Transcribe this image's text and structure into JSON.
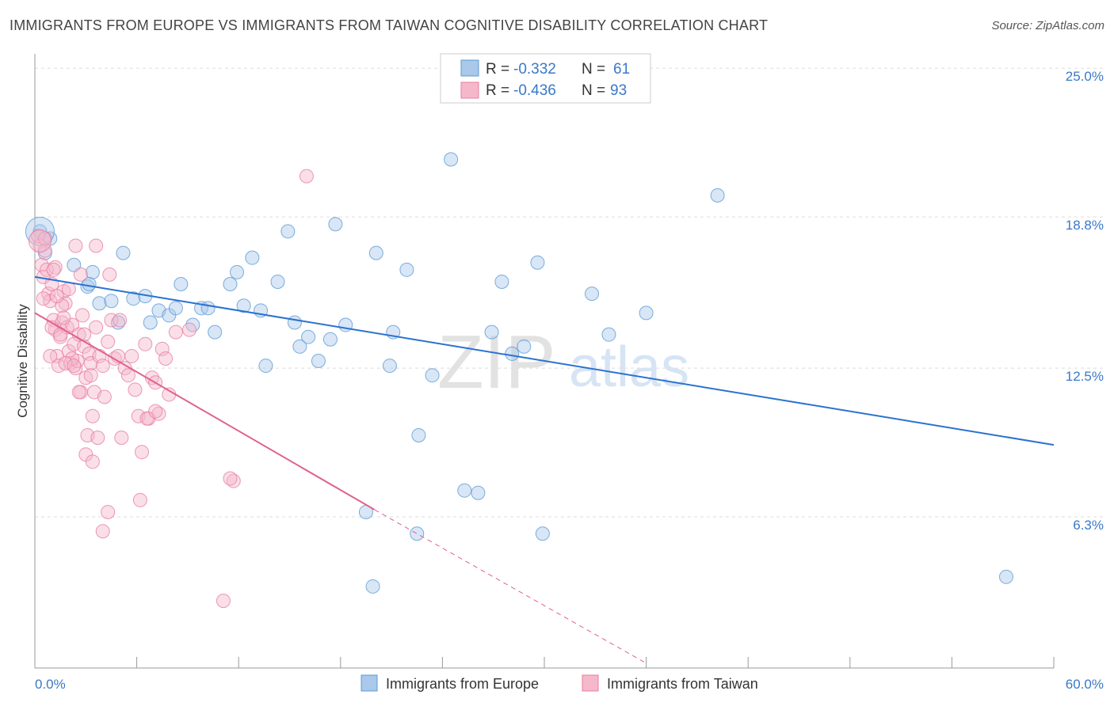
{
  "title": "IMMIGRANTS FROM EUROPE VS IMMIGRANTS FROM TAIWAN COGNITIVE DISABILITY CORRELATION CHART",
  "source": "Source: ZipAtlas.com",
  "watermark": {
    "zip": "ZIP",
    "atlas": "atlas"
  },
  "colors": {
    "europe": "#5b9bd5",
    "europe_fill": "#a9c8ea",
    "europe_line": "#2a72d0",
    "taiwan": "#e87ea1",
    "taiwan_fill": "#f5b8cb",
    "taiwan_line": "#e0618c",
    "tick_label": "#3a78c8",
    "grid": "#dddddd"
  },
  "legend_box": {
    "rows": [
      {
        "r_label": "R =",
        "r_value": "-0.332",
        "n_label": "N =",
        "n_value": "61"
      },
      {
        "r_label": "R =",
        "r_value": "-0.436",
        "n_label": "N =",
        "n_value": "93"
      }
    ]
  },
  "chart_data": {
    "type": "scatter",
    "ylabel": "Cognitive Disability",
    "xlim": [
      0,
      60
    ],
    "ylim": [
      0,
      25.6
    ],
    "x_tick_labels": [
      {
        "value": 0,
        "label": "0.0%"
      },
      {
        "value": 60,
        "label": "60.0%"
      }
    ],
    "y_ticks": [
      {
        "value": 6.3,
        "label": "6.3%"
      },
      {
        "value": 12.5,
        "label": "12.5%"
      },
      {
        "value": 18.8,
        "label": "18.8%"
      },
      {
        "value": 25.0,
        "label": "25.0%"
      }
    ],
    "legend": [
      "Immigrants from Europe",
      "Immigrants from Taiwan"
    ],
    "series": [
      {
        "name": "Immigrants from Europe",
        "r": -0.332,
        "n": 61,
        "trend": {
          "x0": 0,
          "y0": 16.3,
          "x1": 60,
          "y1": 9.3
        },
        "points": [
          [
            0.3,
            18.2
          ],
          [
            0.6,
            17.3
          ],
          [
            0.9,
            17.9
          ],
          [
            2.3,
            16.8
          ],
          [
            3.1,
            15.9
          ],
          [
            3.4,
            16.5
          ],
          [
            3.8,
            15.2
          ],
          [
            4.5,
            15.3
          ],
          [
            4.9,
            14.4
          ],
          [
            5.2,
            17.3
          ],
          [
            5.8,
            15.4
          ],
          [
            6.5,
            15.5
          ],
          [
            6.8,
            14.4
          ],
          [
            7.3,
            14.9
          ],
          [
            7.9,
            14.7
          ],
          [
            8.3,
            15.0
          ],
          [
            8.6,
            16.0
          ],
          [
            9.3,
            14.3
          ],
          [
            9.8,
            15.0
          ],
          [
            10.2,
            15.0
          ],
          [
            10.6,
            14.0
          ],
          [
            11.5,
            16.0
          ],
          [
            11.9,
            16.5
          ],
          [
            12.3,
            15.1
          ],
          [
            12.8,
            17.1
          ],
          [
            13.3,
            14.9
          ],
          [
            13.6,
            12.6
          ],
          [
            14.3,
            16.1
          ],
          [
            14.9,
            18.2
          ],
          [
            15.3,
            14.4
          ],
          [
            15.6,
            13.4
          ],
          [
            16.1,
            13.8
          ],
          [
            16.7,
            12.8
          ],
          [
            17.4,
            13.7
          ],
          [
            17.7,
            18.5
          ],
          [
            18.3,
            14.3
          ],
          [
            20.1,
            17.3
          ],
          [
            20.9,
            12.6
          ],
          [
            21.1,
            14.0
          ],
          [
            21.9,
            16.6
          ],
          [
            22.6,
            9.7
          ],
          [
            23.4,
            12.2
          ],
          [
            24.5,
            21.2
          ],
          [
            25.3,
            7.4
          ],
          [
            26.1,
            7.3
          ],
          [
            26.9,
            14.0
          ],
          [
            27.5,
            16.1
          ],
          [
            28.1,
            13.1
          ],
          [
            28.8,
            13.4
          ],
          [
            29.6,
            16.9
          ],
          [
            29.9,
            5.6
          ],
          [
            31.3,
            24.2
          ],
          [
            32.8,
            15.6
          ],
          [
            33.8,
            13.9
          ],
          [
            36.0,
            14.8
          ],
          [
            40.2,
            19.7
          ],
          [
            57.2,
            3.8
          ],
          [
            19.5,
            6.5
          ],
          [
            19.9,
            3.4
          ],
          [
            22.5,
            5.6
          ],
          [
            3.2,
            16.0
          ]
        ]
      },
      {
        "name": "Immigrants from Taiwan",
        "r": -0.436,
        "n": 93,
        "trend": {
          "x0": 0,
          "y0": 14.8,
          "x1": 20,
          "y1": 6.6
        },
        "trend_dashed": {
          "x0": 20,
          "y0": 6.6,
          "x1": 36,
          "y1": 0.2
        },
        "points": [
          [
            0.2,
            18.0
          ],
          [
            0.3,
            17.6
          ],
          [
            0.4,
            16.8
          ],
          [
            0.5,
            16.3
          ],
          [
            0.6,
            17.4
          ],
          [
            0.7,
            16.6
          ],
          [
            0.8,
            15.6
          ],
          [
            0.9,
            15.3
          ],
          [
            1.0,
            16.0
          ],
          [
            1.1,
            14.5
          ],
          [
            1.2,
            14.1
          ],
          [
            1.3,
            13.0
          ],
          [
            1.4,
            12.6
          ],
          [
            1.5,
            13.8
          ],
          [
            1.6,
            14.4
          ],
          [
            1.7,
            15.7
          ],
          [
            1.8,
            15.2
          ],
          [
            1.9,
            14.2
          ],
          [
            2.0,
            13.2
          ],
          [
            2.1,
            12.7
          ],
          [
            2.2,
            14.3
          ],
          [
            2.3,
            13.5
          ],
          [
            2.4,
            12.5
          ],
          [
            2.5,
            12.8
          ],
          [
            2.6,
            13.9
          ],
          [
            2.7,
            11.5
          ],
          [
            2.8,
            14.7
          ],
          [
            2.9,
            13.4
          ],
          [
            3.0,
            12.1
          ],
          [
            3.1,
            9.7
          ],
          [
            3.2,
            13.1
          ],
          [
            3.3,
            12.7
          ],
          [
            3.4,
            10.5
          ],
          [
            3.5,
            11.5
          ],
          [
            3.6,
            14.2
          ],
          [
            3.7,
            9.6
          ],
          [
            3.8,
            13.0
          ],
          [
            4.0,
            12.6
          ],
          [
            4.1,
            11.3
          ],
          [
            4.3,
            13.6
          ],
          [
            4.5,
            14.5
          ],
          [
            4.7,
            12.9
          ],
          [
            4.9,
            13.0
          ],
          [
            5.1,
            9.6
          ],
          [
            5.3,
            12.5
          ],
          [
            5.5,
            12.2
          ],
          [
            5.7,
            13.0
          ],
          [
            5.9,
            11.6
          ],
          [
            6.1,
            10.5
          ],
          [
            6.3,
            9.0
          ],
          [
            6.5,
            13.5
          ],
          [
            6.7,
            10.4
          ],
          [
            6.9,
            12.1
          ],
          [
            7.1,
            11.9
          ],
          [
            7.3,
            10.6
          ],
          [
            7.5,
            13.3
          ],
          [
            7.7,
            12.9
          ],
          [
            7.9,
            11.4
          ],
          [
            8.3,
            14.0
          ],
          [
            9.1,
            14.1
          ],
          [
            11.7,
            7.8
          ],
          [
            16.0,
            20.5
          ],
          [
            1.0,
            14.2
          ],
          [
            1.2,
            16.7
          ],
          [
            1.6,
            15.1
          ],
          [
            2.2,
            12.9
          ],
          [
            2.6,
            11.5
          ],
          [
            3.0,
            8.9
          ],
          [
            3.4,
            8.6
          ],
          [
            4.3,
            6.5
          ],
          [
            4.0,
            5.7
          ],
          [
            6.2,
            7.0
          ],
          [
            11.5,
            7.9
          ],
          [
            11.1,
            2.8
          ],
          [
            1.1,
            16.6
          ],
          [
            1.5,
            13.9
          ],
          [
            1.8,
            12.7
          ],
          [
            2.4,
            17.6
          ],
          [
            0.9,
            13.0
          ],
          [
            1.3,
            15.5
          ],
          [
            2.7,
            16.4
          ],
          [
            3.6,
            17.6
          ],
          [
            4.4,
            16.4
          ],
          [
            5.0,
            14.5
          ],
          [
            2.0,
            15.8
          ],
          [
            1.7,
            14.6
          ],
          [
            2.3,
            12.6
          ],
          [
            2.9,
            13.9
          ],
          [
            3.3,
            12.2
          ],
          [
            0.6,
            17.9
          ],
          [
            0.5,
            15.4
          ],
          [
            6.6,
            10.4
          ],
          [
            7.1,
            10.7
          ]
        ]
      }
    ]
  }
}
